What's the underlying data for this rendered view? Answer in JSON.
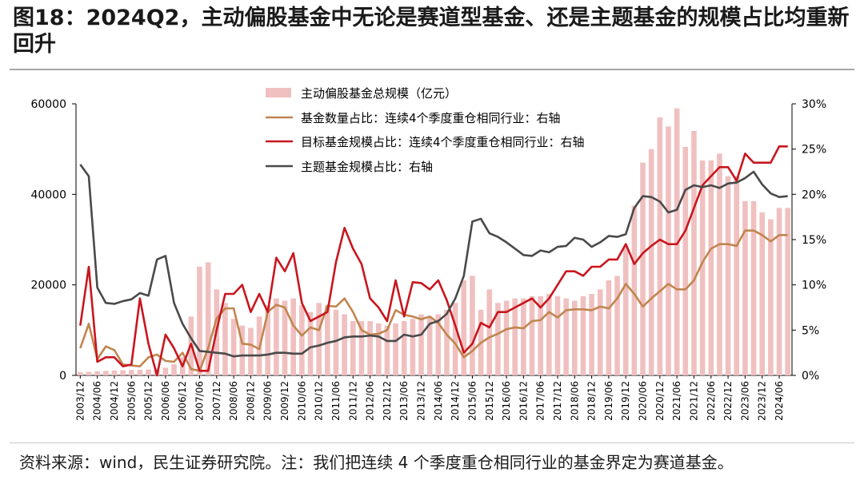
{
  "title": "图18：2024Q2，主动偏股基金中无论是赛道型基金、还是主题基金的规模占比均重新回升",
  "source": "资料来源：wind，民生证券研究院。注：我们把连续 4 个季度重仓相同行业的基金界定为赛道基金。",
  "colors": {
    "bars": "#f0c0c0",
    "count": "#c0864f",
    "target": "#c8161e",
    "theme": "#4a4a4a"
  },
  "chart_data": {
    "type": "bar+line",
    "categories": [
      "2003/12",
      "2004/03",
      "2004/06",
      "2004/09",
      "2004/12",
      "2005/03",
      "2005/06",
      "2005/09",
      "2005/12",
      "2006/03",
      "2006/06",
      "2006/09",
      "2006/12",
      "2007/03",
      "2007/06",
      "2007/09",
      "2007/12",
      "2008/03",
      "2008/06",
      "2008/09",
      "2008/12",
      "2009/03",
      "2009/06",
      "2009/09",
      "2009/12",
      "2010/03",
      "2010/06",
      "2010/09",
      "2010/12",
      "2011/03",
      "2011/06",
      "2011/09",
      "2011/12",
      "2012/03",
      "2012/06",
      "2012/09",
      "2012/12",
      "2013/03",
      "2013/06",
      "2013/09",
      "2013/12",
      "2014/03",
      "2014/06",
      "2014/09",
      "2014/12",
      "2015/03",
      "2015/06",
      "2015/09",
      "2015/12",
      "2016/03",
      "2016/06",
      "2016/09",
      "2016/12",
      "2017/03",
      "2017/06",
      "2017/09",
      "2017/12",
      "2018/03",
      "2018/06",
      "2018/09",
      "2018/12",
      "2019/03",
      "2019/06",
      "2019/09",
      "2019/12",
      "2020/03",
      "2020/06",
      "2020/09",
      "2020/12",
      "2021/03",
      "2021/06",
      "2021/09",
      "2021/12",
      "2022/03",
      "2022/06",
      "2022/09",
      "2022/12",
      "2023/03",
      "2023/06",
      "2023/09",
      "2023/12",
      "2024/03",
      "2024/06",
      "2024/09"
    ],
    "x_tick_labels": [
      "2003/12",
      "2004/06",
      "2004/12",
      "2005/06",
      "2005/12",
      "2006/06",
      "2006/12",
      "2007/06",
      "2007/12",
      "2008/06",
      "2008/12",
      "2009/06",
      "2009/12",
      "2010/06",
      "2010/12",
      "2011/06",
      "2011/12",
      "2012/06",
      "2012/12",
      "2013/06",
      "2013/12",
      "2014/06",
      "2014/12",
      "2015/06",
      "2015/12",
      "2016/06",
      "2016/12",
      "2017/06",
      "2017/12",
      "2018/06",
      "2018/12",
      "2019/06",
      "2019/12",
      "2020/06",
      "2020/12",
      "2021/06",
      "2021/12",
      "2022/06",
      "2022/12",
      "2023/06",
      "2023/12",
      "2024/06"
    ],
    "y_left": {
      "ylim": [
        0,
        60000
      ],
      "ticks": [
        0,
        20000,
        40000,
        60000
      ]
    },
    "y_right": {
      "ylim": [
        0,
        30
      ],
      "ticks": [
        "0%",
        "5%",
        "10%",
        "15%",
        "20%",
        "25%",
        "30%"
      ]
    },
    "legend_position": "top-center",
    "series": [
      {
        "name": "主动偏股基金总规模（亿元）",
        "type": "bar",
        "axis": "left",
        "values": [
          700,
          800,
          900,
          1000,
          1100,
          1150,
          1200,
          1250,
          1300,
          1400,
          1700,
          2500,
          4000,
          13000,
          24000,
          25000,
          19000,
          16000,
          12500,
          11000,
          10500,
          13000,
          15500,
          17000,
          16500,
          17000,
          15500,
          14000,
          16000,
          15500,
          14500,
          13500,
          12000,
          12000,
          12000,
          11500,
          11000,
          11500,
          12000,
          12500,
          13500,
          13000,
          13500,
          14500,
          16000,
          21000,
          22000,
          14500,
          19000,
          16000,
          16500,
          17000,
          17000,
          17500,
          17500,
          18000,
          17500,
          17000,
          16500,
          17500,
          18000,
          19000,
          21000,
          22000,
          28500,
          37500,
          47000,
          50000,
          57000,
          55000,
          59000,
          50500,
          54000,
          47500,
          47500,
          49000,
          44000,
          44000,
          38500,
          38500,
          36000,
          34500,
          37000,
          37000
        ]
      },
      {
        "name": "基金数量占比：连续4个季度重仓相同行业：右轴",
        "type": "line",
        "axis": "right",
        "values": [
          3,
          5.7,
          1.8,
          3.2,
          2.8,
          1.2,
          1.1,
          1,
          2,
          2.3,
          1.6,
          1.5,
          2.5,
          0.7,
          0.5,
          3,
          6.3,
          7.4,
          7.4,
          3.5,
          3.4,
          2.9,
          7,
          7.8,
          7.5,
          5.5,
          4.4,
          5.3,
          5,
          7.7,
          7.6,
          8.5,
          7,
          5,
          4.5,
          4.6,
          5,
          7.2,
          6.7,
          6.5,
          6.2,
          6.5,
          5.8,
          4.5,
          3.5,
          2,
          2.7,
          3.6,
          4.2,
          4.6,
          5.1,
          5.3,
          5.2,
          6,
          6.1,
          7,
          6.4,
          7.2,
          7.3,
          7.3,
          7.2,
          7.6,
          7.4,
          8.5,
          10.1,
          9,
          7.6,
          8.5,
          9.3,
          10.1,
          9.5,
          9.5,
          10.5,
          12.5,
          14,
          14.5,
          14.5,
          14.3,
          16,
          16,
          15.5,
          14.8,
          15.5,
          15.5
        ]
      },
      {
        "name": "目标基金规模占比：连续4个季度重仓相同行业：右轴",
        "type": "line",
        "axis": "right",
        "values": [
          5.5,
          12,
          1.5,
          2,
          2,
          1,
          1.2,
          8.5,
          3.5,
          0,
          4.5,
          3,
          1,
          3.5,
          0.5,
          0.5,
          5,
          9,
          9,
          10,
          7,
          9,
          7,
          13,
          11.5,
          13.5,
          8,
          6,
          6.5,
          7,
          12.5,
          16.3,
          14,
          12.3,
          8.5,
          7.5,
          6,
          10.5,
          6.5,
          10.3,
          10.2,
          9.5,
          10.5,
          8.3,
          5.5,
          2.5,
          3.5,
          5.8,
          5.3,
          7,
          7,
          7.5,
          8,
          8.5,
          7.5,
          8.5,
          10,
          11.5,
          11.5,
          11,
          12,
          12,
          12.8,
          12.8,
          14.5,
          12.3,
          13.5,
          14.3,
          15,
          14.5,
          14.5,
          16,
          18.5,
          21,
          22,
          23,
          23,
          21.5,
          24.5,
          23.5,
          23.5,
          23.5,
          25.3,
          25.3
        ]
      },
      {
        "name": "主题基金规模占比：右轴",
        "type": "line",
        "axis": "right",
        "values": [
          23.3,
          22,
          9.7,
          8,
          7.9,
          8.2,
          8.4,
          9.1,
          8.8,
          12.8,
          13.2,
          8,
          5.7,
          4.1,
          2.7,
          2.6,
          2.5,
          2.4,
          2.1,
          2.2,
          2.2,
          2.2,
          2.3,
          2.5,
          2.5,
          2.4,
          2.4,
          3.1,
          3.3,
          3.6,
          3.8,
          4.2,
          4.3,
          4.3,
          4.4,
          4.3,
          3.8,
          3.8,
          4.5,
          4.3,
          4.5,
          5.7,
          6,
          6.8,
          8.5,
          11,
          17,
          17.3,
          15.7,
          15.3,
          14.7,
          14,
          13.3,
          13.2,
          13.8,
          13.6,
          14.2,
          14.3,
          15.2,
          15,
          14.2,
          14.7,
          15.4,
          15.3,
          15.6,
          18.5,
          19.8,
          19.7,
          19.2,
          18,
          18.3,
          20.5,
          21,
          20.8,
          21,
          20.7,
          21.2,
          21.3,
          21.8,
          22.5,
          21.1,
          20.1,
          19.7,
          19.8
        ]
      }
    ]
  }
}
